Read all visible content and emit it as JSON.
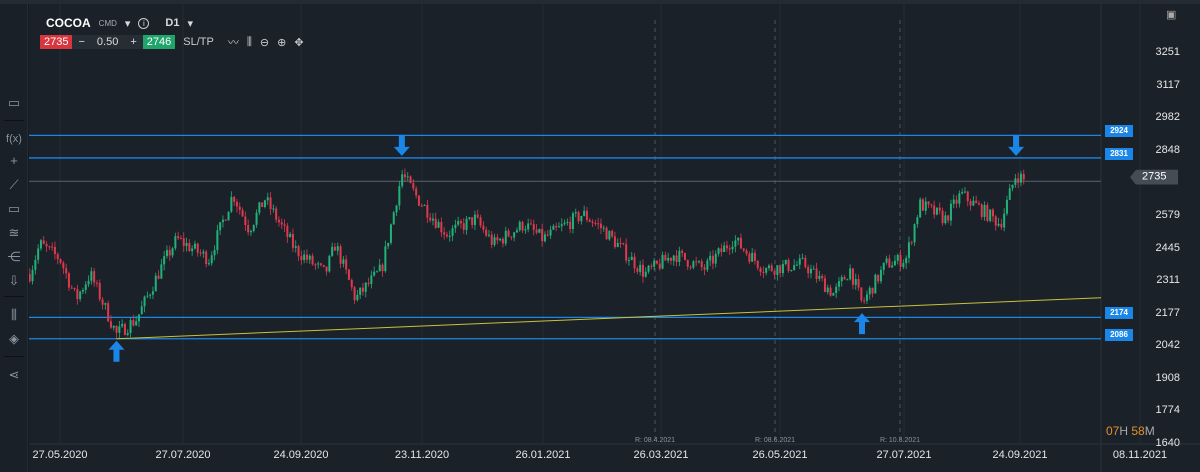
{
  "header": {
    "symbol": "COCOA",
    "market": "CMD",
    "timeframe": "D1",
    "sell_price": "2735",
    "quantity": "0.50",
    "buy_price": "2746",
    "sltp_label": "SL/TP",
    "minus": "−",
    "plus": "+"
  },
  "toolbar_icons": [
    "line-chart-icon",
    "candles-icon",
    "zoom-out-icon",
    "zoom-in-icon",
    "move-icon"
  ],
  "sidebar_icons": [
    "window-icon",
    "function-icon",
    "crosshair-icon",
    "trendline-icon",
    "rectangle-icon",
    "fibonacci-icon",
    "pitchfork-icon",
    "arrow-down-icon",
    "indicators-icon",
    "layers-icon",
    "share-icon"
  ],
  "price_axis": [
    "3251",
    "3117",
    "2982",
    "2848",
    "2579",
    "2445",
    "2311",
    "2177",
    "2042",
    "1908",
    "1774",
    "1640"
  ],
  "date_axis": [
    "27.05.2020",
    "27.07.2020",
    "24.09.2020",
    "23.11.2020",
    "26.01.2021",
    "26.03.2021",
    "26.05.2021",
    "27.07.2021",
    "24.09.2021",
    "08.11.2021"
  ],
  "rollovers": [
    "R: 08.4.2021",
    "R: 08.6.2021",
    "R: 10.8.2021"
  ],
  "levels": [
    {
      "value": "2924",
      "color": "#1a87e8"
    },
    {
      "value": "2831",
      "color": "#1a87e8"
    },
    {
      "value": "2174",
      "color": "#1a87e8"
    },
    {
      "value": "2086",
      "color": "#1a87e8"
    }
  ],
  "current_price": "2735",
  "timer": {
    "hours": "07",
    "h": "H",
    "minutes": "58",
    "m": "M"
  },
  "chart_data": {
    "type": "candlestick",
    "ylim": [
      1640,
      3251
    ],
    "colors": {
      "up": "#21b27a",
      "down": "#e0384d",
      "trendline": "#c9c23a",
      "level": "#1a87e8"
    },
    "close_path": [
      [
        "2020-05-12",
        2353
      ],
      [
        "2020-05-17",
        2476
      ],
      [
        "2020-05-27",
        2415
      ],
      [
        "2020-06-04",
        2250
      ],
      [
        "2020-06-11",
        2353
      ],
      [
        "2020-06-24",
        2105
      ],
      [
        "2020-07-04",
        2167
      ],
      [
        "2020-07-17",
        2394
      ],
      [
        "2020-07-24",
        2497
      ],
      [
        "2020-08-09",
        2415
      ],
      [
        "2020-08-21",
        2682
      ],
      [
        "2020-08-29",
        2538
      ],
      [
        "2020-09-06",
        2662
      ],
      [
        "2020-09-21",
        2456
      ],
      [
        "2020-10-06",
        2353
      ],
      [
        "2020-10-11",
        2476
      ],
      [
        "2020-10-21",
        2250
      ],
      [
        "2020-11-03",
        2373
      ],
      [
        "2020-11-13",
        2765
      ],
      [
        "2020-11-21",
        2662
      ],
      [
        "2020-12-06",
        2518
      ],
      [
        "2020-12-21",
        2579
      ],
      [
        "2020-12-31",
        2476
      ],
      [
        "2021-01-16",
        2559
      ],
      [
        "2021-01-26",
        2497
      ],
      [
        "2021-02-15",
        2600
      ],
      [
        "2021-02-25",
        2538
      ],
      [
        "2021-03-18",
        2353
      ],
      [
        "2021-04-02",
        2435
      ],
      [
        "2021-04-17",
        2373
      ],
      [
        "2021-05-02",
        2497
      ],
      [
        "2021-05-18",
        2373
      ],
      [
        "2021-06-07",
        2394
      ],
      [
        "2021-06-22",
        2270
      ],
      [
        "2021-06-30",
        2373
      ],
      [
        "2021-07-06",
        2229
      ],
      [
        "2021-07-18",
        2394
      ],
      [
        "2021-07-28",
        2415
      ],
      [
        "2021-08-04",
        2641
      ],
      [
        "2021-08-17",
        2579
      ],
      [
        "2021-08-25",
        2682
      ],
      [
        "2021-09-04",
        2620
      ],
      [
        "2021-09-14",
        2559
      ],
      [
        "2021-09-22",
        2765
      ],
      [
        "2021-09-26",
        2735
      ]
    ],
    "trendline": [
      [
        "2020-06-24",
        2086
      ],
      [
        "2021-11-08",
        2255
      ]
    ],
    "arrows": [
      {
        "date": "2020-06-24",
        "price": 2086,
        "dir": "up"
      },
      {
        "date": "2020-11-13",
        "price": 2831,
        "dir": "down"
      },
      {
        "date": "2021-07-06",
        "price": 2200,
        "dir": "up"
      },
      {
        "date": "2021-09-22",
        "price": 2831,
        "dir": "down"
      }
    ]
  }
}
